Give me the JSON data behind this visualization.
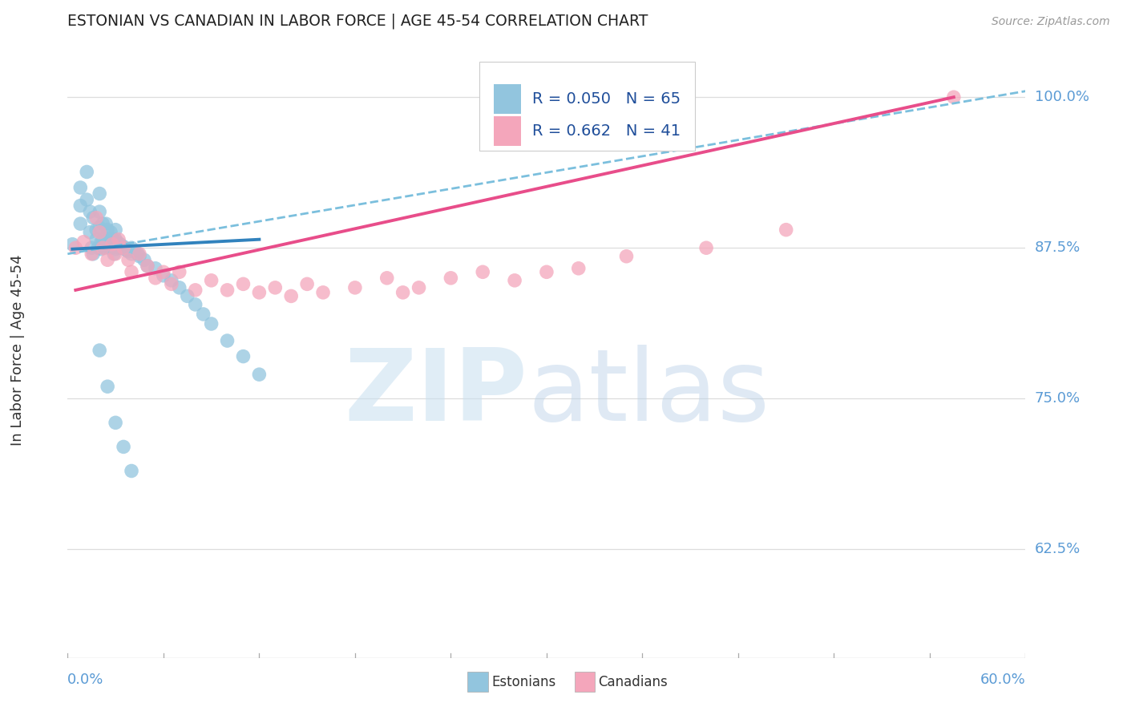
{
  "title": "ESTONIAN VS CANADIAN IN LABOR FORCE | AGE 45-54 CORRELATION CHART",
  "source": "Source: ZipAtlas.com",
  "ylabel": "In Labor Force | Age 45-54",
  "ytick_labels": [
    "62.5%",
    "75.0%",
    "87.5%",
    "100.0%"
  ],
  "ytick_values": [
    0.625,
    0.75,
    0.875,
    1.0
  ],
  "xlim": [
    0.0,
    0.6
  ],
  "ylim": [
    0.535,
    1.045
  ],
  "R1": 0.05,
  "N1": 65,
  "R2": 0.662,
  "N2": 41,
  "blue_color": "#92c5de",
  "pink_color": "#f4a6bb",
  "blue_line_color": "#3182bd",
  "pink_line_color": "#e84d8a",
  "axis_label_color": "#5b9bd5",
  "legend_text_color": "#1f4e9a",
  "legend_R_black": "#222222",
  "watermark_zip_color": "#c8dff0",
  "watermark_atlas_color": "#b8d0e8",
  "est_x": [
    0.003,
    0.008,
    0.008,
    0.008,
    0.012,
    0.012,
    0.014,
    0.014,
    0.015,
    0.016,
    0.016,
    0.018,
    0.018,
    0.019,
    0.02,
    0.02,
    0.02,
    0.021,
    0.021,
    0.022,
    0.022,
    0.023,
    0.024,
    0.024,
    0.025,
    0.025,
    0.026,
    0.027,
    0.028,
    0.028,
    0.029,
    0.03,
    0.03,
    0.03,
    0.031,
    0.032,
    0.033,
    0.034,
    0.035,
    0.036,
    0.037,
    0.038,
    0.04,
    0.04,
    0.042,
    0.044,
    0.045,
    0.048,
    0.05,
    0.055,
    0.06,
    0.065,
    0.07,
    0.075,
    0.08,
    0.085,
    0.09,
    0.1,
    0.11,
    0.12,
    0.02,
    0.025,
    0.03,
    0.035,
    0.04
  ],
  "est_y": [
    0.878,
    0.925,
    0.91,
    0.895,
    0.938,
    0.915,
    0.905,
    0.888,
    0.875,
    0.87,
    0.9,
    0.89,
    0.882,
    0.875,
    0.92,
    0.905,
    0.892,
    0.88,
    0.874,
    0.895,
    0.882,
    0.875,
    0.895,
    0.883,
    0.89,
    0.878,
    0.875,
    0.888,
    0.882,
    0.875,
    0.87,
    0.89,
    0.882,
    0.874,
    0.88,
    0.875,
    0.878,
    0.875,
    0.876,
    0.874,
    0.873,
    0.872,
    0.875,
    0.87,
    0.872,
    0.87,
    0.868,
    0.865,
    0.86,
    0.858,
    0.852,
    0.848,
    0.842,
    0.835,
    0.828,
    0.82,
    0.812,
    0.798,
    0.785,
    0.77,
    0.79,
    0.76,
    0.73,
    0.71,
    0.69
  ],
  "can_x": [
    0.005,
    0.01,
    0.015,
    0.018,
    0.02,
    0.022,
    0.025,
    0.028,
    0.03,
    0.032,
    0.035,
    0.038,
    0.04,
    0.045,
    0.05,
    0.055,
    0.06,
    0.065,
    0.07,
    0.08,
    0.09,
    0.1,
    0.11,
    0.12,
    0.13,
    0.14,
    0.15,
    0.16,
    0.18,
    0.2,
    0.21,
    0.22,
    0.24,
    0.26,
    0.28,
    0.3,
    0.32,
    0.35,
    0.4,
    0.45,
    0.555
  ],
  "can_y": [
    0.875,
    0.88,
    0.87,
    0.9,
    0.888,
    0.875,
    0.865,
    0.878,
    0.87,
    0.882,
    0.875,
    0.865,
    0.855,
    0.87,
    0.86,
    0.85,
    0.855,
    0.845,
    0.855,
    0.84,
    0.848,
    0.84,
    0.845,
    0.838,
    0.842,
    0.835,
    0.845,
    0.838,
    0.842,
    0.85,
    0.838,
    0.842,
    0.85,
    0.855,
    0.848,
    0.855,
    0.858,
    0.868,
    0.875,
    0.89,
    1.0
  ],
  "est_line_x": [
    0.003,
    0.12
  ],
  "est_line_y": [
    0.874,
    0.882
  ],
  "can_line_x": [
    0.005,
    0.555
  ],
  "can_line_y": [
    0.84,
    1.0
  ],
  "dash_line_x": [
    0.0,
    0.6
  ],
  "dash_line_y": [
    0.87,
    1.005
  ]
}
